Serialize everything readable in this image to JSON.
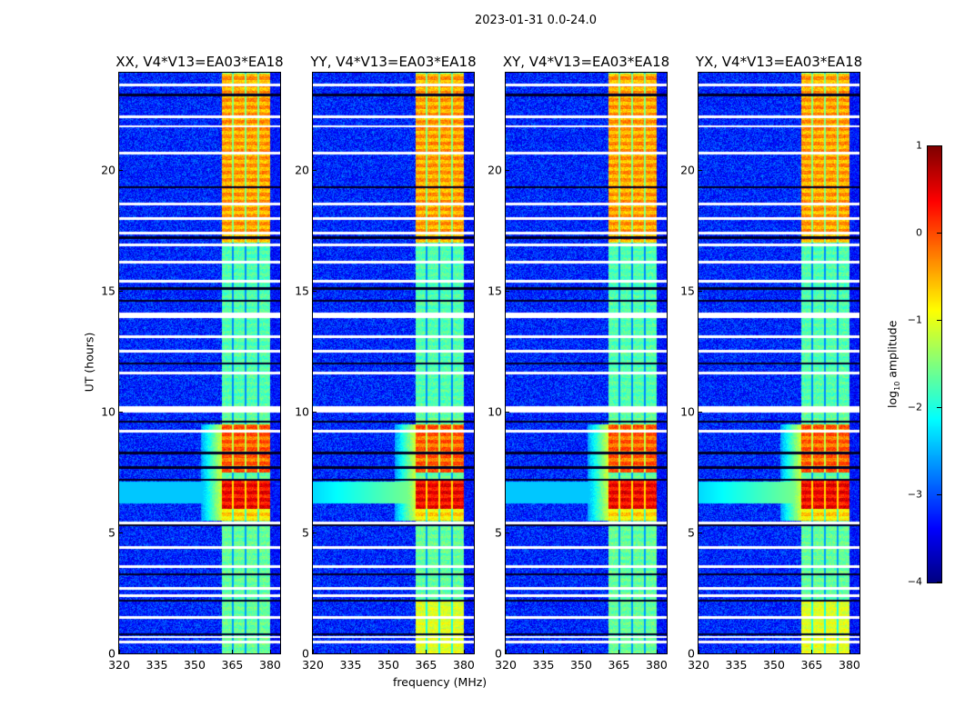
{
  "chart_data": {
    "type": "heatmap",
    "title": "2023-01-31 0.0-24.0",
    "xlabel": "frequency (MHz)",
    "ylabel": "UT (hours)",
    "xlim": [
      320,
      384
    ],
    "ylim": [
      0,
      24
    ],
    "xticks": [
      "320",
      "335",
      "350",
      "365",
      "380"
    ],
    "yticks": [
      "0",
      "5",
      "10",
      "15",
      "20"
    ],
    "panels": [
      {
        "title": "XX, V4*V13=EA03*EA18",
        "pol": "XX"
      },
      {
        "title": "YY, V4*V13=EA03*EA18",
        "pol": "YY"
      },
      {
        "title": "XY, V4*V13=EA03*EA18",
        "pol": "XY"
      },
      {
        "title": "YX, V4*V13=EA03*EA18",
        "pol": "YX"
      }
    ],
    "colorbar": {
      "colormap": "jet",
      "label_main": "log",
      "label_sub": "10",
      "label_rest": " amplitude",
      "range": [
        -4,
        1
      ],
      "ticks": [
        "1",
        "0",
        "−1",
        "−2",
        "−3",
        "−4"
      ],
      "tick_values": [
        1,
        0,
        -1,
        -2,
        -3,
        -4
      ]
    },
    "background_level": -3.2,
    "bright_band_mhz": [
      360.5,
      380
    ],
    "band_channel_gaps_mhz": [
      365,
      370,
      375
    ],
    "band_levels": [
      {
        "ut": [
          17,
          24
        ],
        "level": -0.6
      },
      {
        "ut": [
          10,
          17
        ],
        "level": -1.8
      },
      {
        "ut": [
          7.5,
          9.5
        ],
        "level": -0.3
      },
      {
        "ut": [
          6,
          7.2
        ],
        "level": 0.2
      },
      {
        "ut": [
          5.5,
          6
        ],
        "level": -0.9
      },
      {
        "ut": [
          0,
          5.5
        ],
        "level": -1.7
      }
    ],
    "flagged_rows_ut": [
      23.5,
      22.2,
      21.8,
      20.7,
      18.6,
      18.0,
      17.4,
      16.9,
      16.2,
      15.4,
      14.0,
      13.1,
      12.5,
      11.6,
      10.1,
      9.2,
      5.4,
      4.4,
      3.6,
      2.7,
      2.4,
      1.5,
      0.7,
      0.5
    ],
    "dark_rows_ut": [
      23.1,
      19.3,
      17.2,
      15.1,
      14.6,
      12.0,
      9.6,
      8.3,
      7.7,
      7.2,
      5.3,
      3.3,
      2.2,
      0.8
    ]
  }
}
